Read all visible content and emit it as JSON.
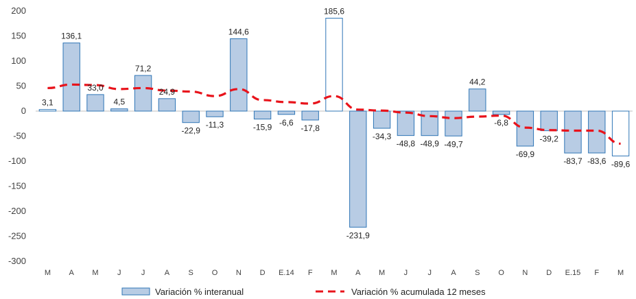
{
  "chart_data": {
    "type": "bar",
    "title": "",
    "xlabel": "",
    "ylabel": "",
    "ylim": [
      -300,
      200
    ],
    "yticks": [
      200,
      150,
      100,
      50,
      0,
      -50,
      -100,
      -150,
      -200,
      -250,
      -300
    ],
    "grid": false,
    "legend_position": "bottom",
    "categories": [
      "M",
      "A",
      "M",
      "J",
      "J",
      "A",
      "S",
      "O",
      "N",
      "D",
      "E.14",
      "F",
      "M",
      "A",
      "M",
      "J",
      "J",
      "A",
      "S",
      "O",
      "N",
      "D",
      "E.15",
      "F",
      "M"
    ],
    "series": [
      {
        "name": "Variación % interanual",
        "type": "bar",
        "color": "#b8cce4",
        "edge_color": "#2e75b6",
        "values": [
          3.1,
          136.1,
          33.0,
          4.5,
          71.2,
          24.9,
          -22.9,
          -11.3,
          144.6,
          -15.9,
          -6.6,
          -17.8,
          185.6,
          -231.9,
          -34.3,
          -48.8,
          -48.9,
          -49.7,
          44.2,
          -6.8,
          -69.9,
          -39.2,
          -83.7,
          -83.6,
          -89.6
        ],
        "labels": [
          "3,1",
          "136,1",
          "33,0",
          "4,5",
          "71,2",
          "24,9",
          "-22,9",
          "-11,3",
          "144,6",
          "-15,9",
          "-6,6",
          "-17,8",
          "185,6",
          "-231,9",
          "-34,3",
          "-48,8",
          "-48,9",
          "-49,7",
          "44,2",
          "-6,8",
          "-69,9",
          "-39,2",
          "-83,7",
          "-83,6",
          "-89,6"
        ],
        "hollow_fill": [
          true,
          false,
          false,
          false,
          false,
          false,
          false,
          false,
          false,
          false,
          false,
          false,
          true,
          false,
          false,
          false,
          false,
          false,
          false,
          false,
          false,
          false,
          false,
          false,
          true
        ]
      },
      {
        "name": "Variación % acumulada 12 meses",
        "type": "line",
        "style": "dashed",
        "color": "#e8131b",
        "values": [
          46,
          53,
          52,
          44,
          46,
          41,
          39,
          30,
          44,
          22,
          18,
          15,
          30,
          3,
          1,
          -3,
          -10,
          -14,
          -11,
          -9,
          -33,
          -38,
          -39,
          -39,
          -65
        ]
      }
    ]
  }
}
